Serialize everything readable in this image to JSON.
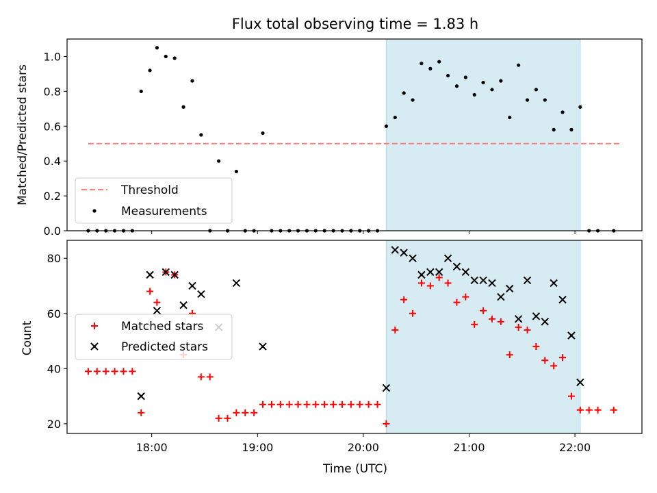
{
  "chart_data": [
    {
      "type": "scatter",
      "title": "Flux total observing time = 1.83 h",
      "xlabel": "",
      "ylabel": "Matched/Predicted stars",
      "xlim": [
        "17:12",
        "22:38"
      ],
      "ylim": [
        0,
        1.1
      ],
      "yticks": [
        0,
        0.2,
        0.4,
        0.6,
        0.8,
        1.0
      ],
      "ytick_labels": [
        "0.0",
        "0.2",
        "0.4",
        "0.6",
        "0.8",
        "1.0"
      ],
      "legend_position": "lower-left",
      "shaded_interval": {
        "start": "20:13",
        "end": "22:03",
        "color": "#add8e6"
      },
      "threshold": {
        "name": "Threshold",
        "value": 0.5,
        "x_start": "17:24",
        "x_end": "22:26",
        "color": "#ff7f7f",
        "style": "dashed"
      },
      "series": [
        {
          "name": "Measurements",
          "color": "#000000",
          "marker": "dot",
          "points": [
            [
              "17:24",
              0
            ],
            [
              "17:29",
              0
            ],
            [
              "17:34",
              0
            ],
            [
              "17:39",
              0
            ],
            [
              "17:44",
              0
            ],
            [
              "17:49",
              0
            ],
            [
              "17:54",
              0.8
            ],
            [
              "17:59",
              0.92
            ],
            [
              "18:03",
              1.05
            ],
            [
              "18:08",
              1.0
            ],
            [
              "18:13",
              0.99
            ],
            [
              "18:18",
              0.71
            ],
            [
              "18:23",
              0.86
            ],
            [
              "18:28",
              0.55
            ],
            [
              "18:33",
              0
            ],
            [
              "18:38",
              0.4
            ],
            [
              "18:43",
              0
            ],
            [
              "18:48",
              0.34
            ],
            [
              "18:53",
              0
            ],
            [
              "18:58",
              0
            ],
            [
              "19:03",
              0.56
            ],
            [
              "19:08",
              0
            ],
            [
              "19:13",
              0
            ],
            [
              "19:18",
              0
            ],
            [
              "19:23",
              0
            ],
            [
              "19:28",
              0
            ],
            [
              "19:33",
              0
            ],
            [
              "19:38",
              0
            ],
            [
              "19:43",
              0
            ],
            [
              "19:48",
              0
            ],
            [
              "19:53",
              0
            ],
            [
              "19:58",
              0
            ],
            [
              "20:03",
              0
            ],
            [
              "20:08",
              0
            ],
            [
              "20:13",
              0.6
            ],
            [
              "20:18",
              0.65
            ],
            [
              "20:23",
              0.79
            ],
            [
              "20:28",
              0.75
            ],
            [
              "20:33",
              0.96
            ],
            [
              "20:38",
              0.93
            ],
            [
              "20:43",
              0.97
            ],
            [
              "20:48",
              0.89
            ],
            [
              "20:53",
              0.83
            ],
            [
              "20:58",
              0.88
            ],
            [
              "21:03",
              0.78
            ],
            [
              "21:08",
              0.85
            ],
            [
              "21:13",
              0.81
            ],
            [
              "21:18",
              0.86
            ],
            [
              "21:23",
              0.65
            ],
            [
              "21:28",
              0.95
            ],
            [
              "21:33",
              0.75
            ],
            [
              "21:38",
              0.81
            ],
            [
              "21:43",
              0.75
            ],
            [
              "21:48",
              0.58
            ],
            [
              "21:53",
              0.68
            ],
            [
              "21:58",
              0.58
            ],
            [
              "22:03",
              0.71
            ],
            [
              "22:08",
              0
            ],
            [
              "22:13",
              0
            ],
            [
              "22:22",
              0
            ]
          ]
        }
      ]
    },
    {
      "type": "scatter",
      "title": "",
      "xlabel": "Time (UTC)",
      "ylabel": "Count",
      "xlim": [
        "17:12",
        "22:38"
      ],
      "ylim": [
        16.5,
        86.5
      ],
      "xticks": [
        "18:00",
        "19:00",
        "20:00",
        "21:00",
        "22:00"
      ],
      "yticks": [
        20,
        40,
        60,
        80
      ],
      "ytick_labels": [
        "20",
        "40",
        "60",
        "80"
      ],
      "legend_position": "center-left",
      "shaded_interval": {
        "start": "20:13",
        "end": "22:03",
        "color": "#add8e6"
      },
      "series": [
        {
          "name": "Matched stars",
          "color": "#ff0000",
          "marker": "plus",
          "points": [
            [
              "17:24",
              39
            ],
            [
              "17:29",
              39
            ],
            [
              "17:34",
              39
            ],
            [
              "17:39",
              39
            ],
            [
              "17:44",
              39
            ],
            [
              "17:49",
              39
            ],
            [
              "17:54",
              24
            ],
            [
              "17:59",
              68
            ],
            [
              "18:03",
              64
            ],
            [
              "18:08",
              75
            ],
            [
              "18:13",
              74
            ],
            [
              "18:18",
              45
            ],
            [
              "18:23",
              60
            ],
            [
              "18:28",
              37
            ],
            [
              "18:33",
              37
            ],
            [
              "18:38",
              22
            ],
            [
              "18:43",
              22
            ],
            [
              "18:48",
              24
            ],
            [
              "18:53",
              24
            ],
            [
              "18:58",
              24
            ],
            [
              "19:03",
              27
            ],
            [
              "19:08",
              27
            ],
            [
              "19:13",
              27
            ],
            [
              "19:18",
              27
            ],
            [
              "19:23",
              27
            ],
            [
              "19:28",
              27
            ],
            [
              "19:33",
              27
            ],
            [
              "19:38",
              27
            ],
            [
              "19:43",
              27
            ],
            [
              "19:48",
              27
            ],
            [
              "19:53",
              27
            ],
            [
              "19:58",
              27
            ],
            [
              "20:03",
              27
            ],
            [
              "20:08",
              27
            ],
            [
              "20:13",
              20
            ],
            [
              "20:18",
              54
            ],
            [
              "20:23",
              65
            ],
            [
              "20:28",
              60
            ],
            [
              "20:33",
              71
            ],
            [
              "20:38",
              70
            ],
            [
              "20:43",
              73
            ],
            [
              "20:48",
              71
            ],
            [
              "20:53",
              64
            ],
            [
              "20:58",
              66
            ],
            [
              "21:03",
              56
            ],
            [
              "21:08",
              61
            ],
            [
              "21:13",
              58
            ],
            [
              "21:18",
              57
            ],
            [
              "21:23",
              45
            ],
            [
              "21:28",
              55
            ],
            [
              "21:33",
              54
            ],
            [
              "21:38",
              48
            ],
            [
              "21:43",
              43
            ],
            [
              "21:48",
              41
            ],
            [
              "21:53",
              44
            ],
            [
              "21:58",
              30
            ],
            [
              "22:03",
              25
            ],
            [
              "22:08",
              25
            ],
            [
              "22:13",
              25
            ],
            [
              "22:22",
              25
            ]
          ]
        },
        {
          "name": "Predicted stars",
          "color": "#000000",
          "marker": "x",
          "points": [
            [
              "17:54",
              30
            ],
            [
              "17:59",
              74
            ],
            [
              "18:03",
              61
            ],
            [
              "18:08",
              75
            ],
            [
              "18:13",
              74
            ],
            [
              "18:18",
              63
            ],
            [
              "18:23",
              70
            ],
            [
              "18:28",
              67
            ],
            [
              "18:38",
              55
            ],
            [
              "18:48",
              71
            ],
            [
              "19:03",
              48
            ],
            [
              "20:13",
              33
            ],
            [
              "20:18",
              83
            ],
            [
              "20:23",
              82
            ],
            [
              "20:28",
              80
            ],
            [
              "20:33",
              74
            ],
            [
              "20:38",
              75
            ],
            [
              "20:43",
              75
            ],
            [
              "20:48",
              80
            ],
            [
              "20:53",
              77
            ],
            [
              "20:58",
              75
            ],
            [
              "21:03",
              72
            ],
            [
              "21:08",
              72
            ],
            [
              "21:13",
              71
            ],
            [
              "21:18",
              66
            ],
            [
              "21:23",
              69
            ],
            [
              "21:28",
              58
            ],
            [
              "21:33",
              72
            ],
            [
              "21:38",
              59
            ],
            [
              "21:43",
              57
            ],
            [
              "21:48",
              71
            ],
            [
              "21:53",
              65
            ],
            [
              "21:58",
              52
            ],
            [
              "22:03",
              35
            ]
          ]
        }
      ]
    }
  ]
}
